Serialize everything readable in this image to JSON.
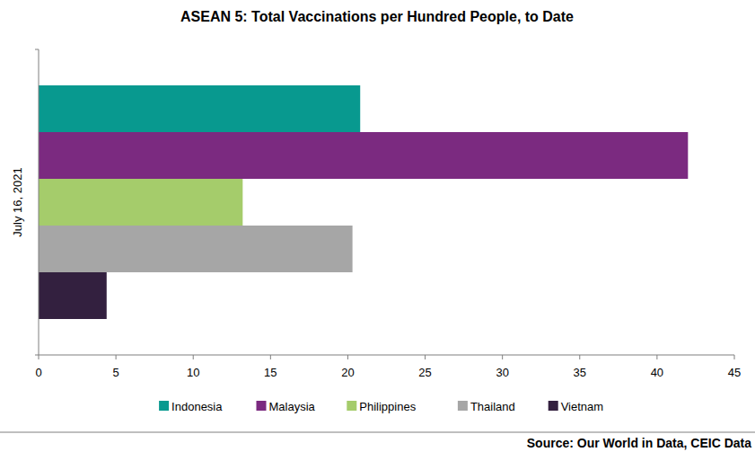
{
  "chart_data": {
    "type": "bar",
    "orientation": "horizontal",
    "title": "ASEAN 5: Total Vaccinations per Hundred People, to Date",
    "categories": [
      "July 16, 2021"
    ],
    "series": [
      {
        "name": "Indonesia",
        "color": "#08998f",
        "values": [
          20.8
        ]
      },
      {
        "name": "Malaysia",
        "color": "#7b2a80",
        "values": [
          42.0
        ]
      },
      {
        "name": "Philippines",
        "color": "#a5cc6b",
        "values": [
          13.2
        ]
      },
      {
        "name": "Thailand",
        "color": "#a6a6a6",
        "values": [
          20.3
        ]
      },
      {
        "name": "Vietnam",
        "color": "#33203f",
        "values": [
          4.4
        ]
      }
    ],
    "xlim": [
      0,
      45
    ],
    "xticks": [
      0,
      5,
      10,
      15,
      20,
      25,
      30,
      35,
      40,
      45
    ],
    "grid": false,
    "legend": "bottom",
    "source": "Source: Our World in Data, CEIC Data"
  }
}
